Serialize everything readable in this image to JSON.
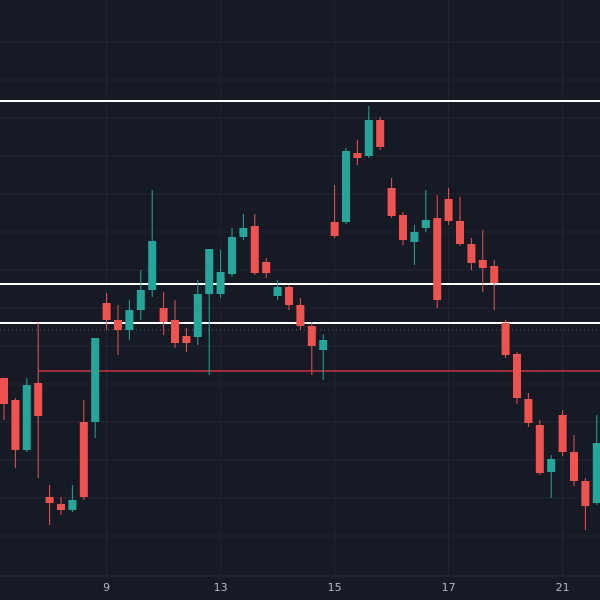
{
  "chart_data": {
    "type": "candlestick",
    "categories": [
      null,
      null,
      null,
      null,
      null,
      null,
      null,
      null,
      null,
      "9",
      null,
      null,
      null,
      null,
      null,
      null,
      null,
      null,
      null,
      "13",
      null,
      null,
      null,
      null,
      null,
      null,
      null,
      null,
      null,
      "15",
      null,
      null,
      null,
      null,
      null,
      null,
      null,
      null,
      null,
      "17",
      null,
      null,
      null,
      null,
      null,
      null,
      null,
      null,
      null,
      "21",
      null,
      null,
      null
    ],
    "open": [
      222,
      200,
      150,
      217,
      103,
      96,
      90,
      178,
      178,
      297,
      280,
      270,
      290,
      310,
      292,
      280,
      264,
      263,
      306,
      306,
      326,
      363,
      374,
      338,
      304,
      313,
      295,
      274,
      250,
      378,
      378,
      447,
      444,
      480,
      412,
      385,
      358,
      372,
      382,
      401,
      379,
      356,
      340,
      334,
      277,
      246,
      201,
      175,
      128,
      185,
      148,
      119,
      97
    ],
    "high": [
      222,
      202,
      222,
      277,
      115,
      103,
      115,
      200,
      262,
      307,
      295,
      300,
      330,
      410,
      308,
      300,
      272,
      320,
      351,
      350,
      372,
      386,
      386,
      342,
      320,
      315,
      302,
      278,
      266,
      415,
      452,
      460,
      494,
      483,
      422,
      388,
      375,
      410,
      405,
      412,
      403,
      362,
      370,
      340,
      280,
      248,
      207,
      180,
      145,
      190,
      165,
      122,
      185
    ],
    "low": [
      180,
      132,
      148,
      122,
      75,
      85,
      88,
      100,
      162,
      270,
      245,
      260,
      280,
      303,
      265,
      252,
      248,
      255,
      225,
      302,
      323,
      360,
      325,
      322,
      300,
      290,
      270,
      225,
      220,
      362,
      376,
      435,
      442,
      450,
      382,
      355,
      335,
      368,
      292,
      375,
      354,
      330,
      308,
      290,
      242,
      196,
      173,
      125,
      102,
      144,
      114,
      70,
      95
    ],
    "close": [
      196,
      150,
      215,
      184,
      97,
      90,
      100,
      103,
      262,
      280,
      270,
      290,
      310,
      359,
      278,
      257,
      257,
      306,
      351,
      328,
      363,
      372,
      327,
      327,
      313,
      295,
      274,
      254,
      260,
      364,
      449,
      442,
      480,
      453,
      384,
      360,
      368,
      380,
      300,
      379,
      356,
      337,
      332,
      317,
      245,
      202,
      177,
      127,
      141,
      148,
      119,
      94,
      157
    ],
    "up_color": "#26a69a",
    "down_color": "#ef5350",
    "hlines": [
      {
        "value": 499,
        "color": "#ffffff"
      },
      {
        "value": 316,
        "color": "#ffffff"
      },
      {
        "value": 277,
        "color": "#ffffff"
      },
      {
        "value": 229,
        "color": "#f23645",
        "start": 3
      },
      {
        "value": 270,
        "color": "#5d606b",
        "dashed": true
      }
    ],
    "ylim": [
      0,
      600
    ]
  }
}
